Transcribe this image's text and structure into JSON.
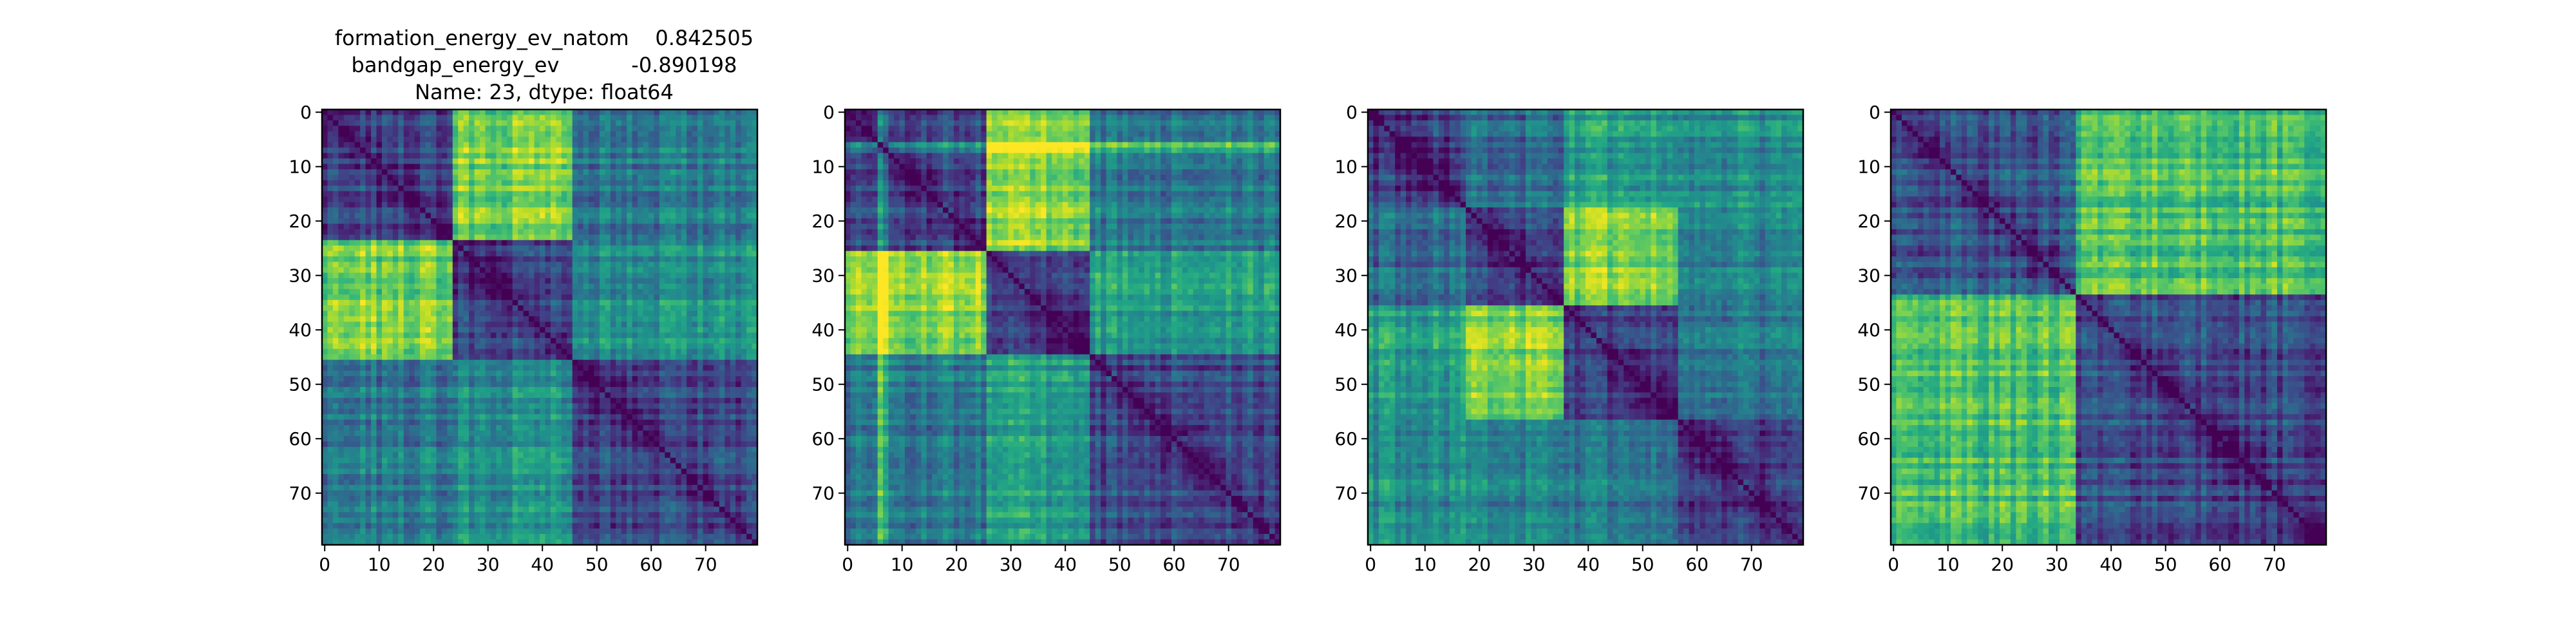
{
  "figure": {
    "title_lines": [
      "formation_energy_ev_natom    0.842505",
      "bandgap_energy_ev           -0.890198",
      "Name: 23, dtype: float64"
    ]
  },
  "chart_data": [
    {
      "type": "heatmap",
      "colormap": "viridis",
      "matrix_size": 80,
      "xticks": [
        0,
        10,
        20,
        30,
        40,
        50,
        60,
        70
      ],
      "yticks": [
        0,
        10,
        20,
        30,
        40,
        50,
        60,
        70
      ],
      "xlim": [
        -0.5,
        79.5
      ],
      "ylim": [
        79.5,
        -0.5
      ],
      "block_boundaries": [
        0,
        24,
        46,
        80
      ],
      "block_means": [
        [
          0.22,
          0.8,
          0.4
        ],
        [
          0.8,
          0.22,
          0.5
        ],
        [
          0.4,
          0.5,
          0.22
        ]
      ],
      "diagonal_value": 0.0
    },
    {
      "type": "heatmap",
      "colormap": "viridis",
      "matrix_size": 80,
      "xticks": [
        0,
        10,
        20,
        30,
        40,
        50,
        60,
        70
      ],
      "yticks": [
        0,
        10,
        20,
        30,
        40,
        50,
        60,
        70
      ],
      "xlim": [
        -0.5,
        79.5
      ],
      "ylim": [
        79.5,
        -0.5
      ],
      "block_boundaries": [
        0,
        26,
        45,
        80
      ],
      "block_means": [
        [
          0.22,
          0.82,
          0.4
        ],
        [
          0.82,
          0.18,
          0.55
        ],
        [
          0.4,
          0.55,
          0.22
        ]
      ],
      "diagonal_value": 0.0,
      "bright_lines": [
        6,
        7
      ]
    },
    {
      "type": "heatmap",
      "colormap": "viridis",
      "matrix_size": 80,
      "xticks": [
        0,
        10,
        20,
        30,
        40,
        50,
        60,
        70
      ],
      "yticks": [
        0,
        10,
        20,
        30,
        40,
        50,
        60,
        70
      ],
      "xlim": [
        -0.5,
        79.5
      ],
      "ylim": [
        79.5,
        -0.5
      ],
      "block_boundaries": [
        0,
        18,
        36,
        57,
        80
      ],
      "block_means": [
        [
          0.2,
          0.35,
          0.55,
          0.5
        ],
        [
          0.35,
          0.2,
          0.8,
          0.45
        ],
        [
          0.55,
          0.8,
          0.2,
          0.4
        ],
        [
          0.5,
          0.45,
          0.4,
          0.2
        ]
      ],
      "diagonal_value": 0.0
    },
    {
      "type": "heatmap",
      "colormap": "viridis",
      "matrix_size": 80,
      "xticks": [
        0,
        10,
        20,
        30,
        40,
        50,
        60,
        70
      ],
      "yticks": [
        0,
        10,
        20,
        30,
        40,
        50,
        60,
        70
      ],
      "xlim": [
        -0.5,
        79.5
      ],
      "ylim": [
        79.5,
        -0.5
      ],
      "block_boundaries": [
        0,
        34,
        80
      ],
      "block_means": [
        [
          0.25,
          0.7
        ],
        [
          0.7,
          0.22
        ]
      ],
      "diagonal_value": 0.0
    }
  ]
}
